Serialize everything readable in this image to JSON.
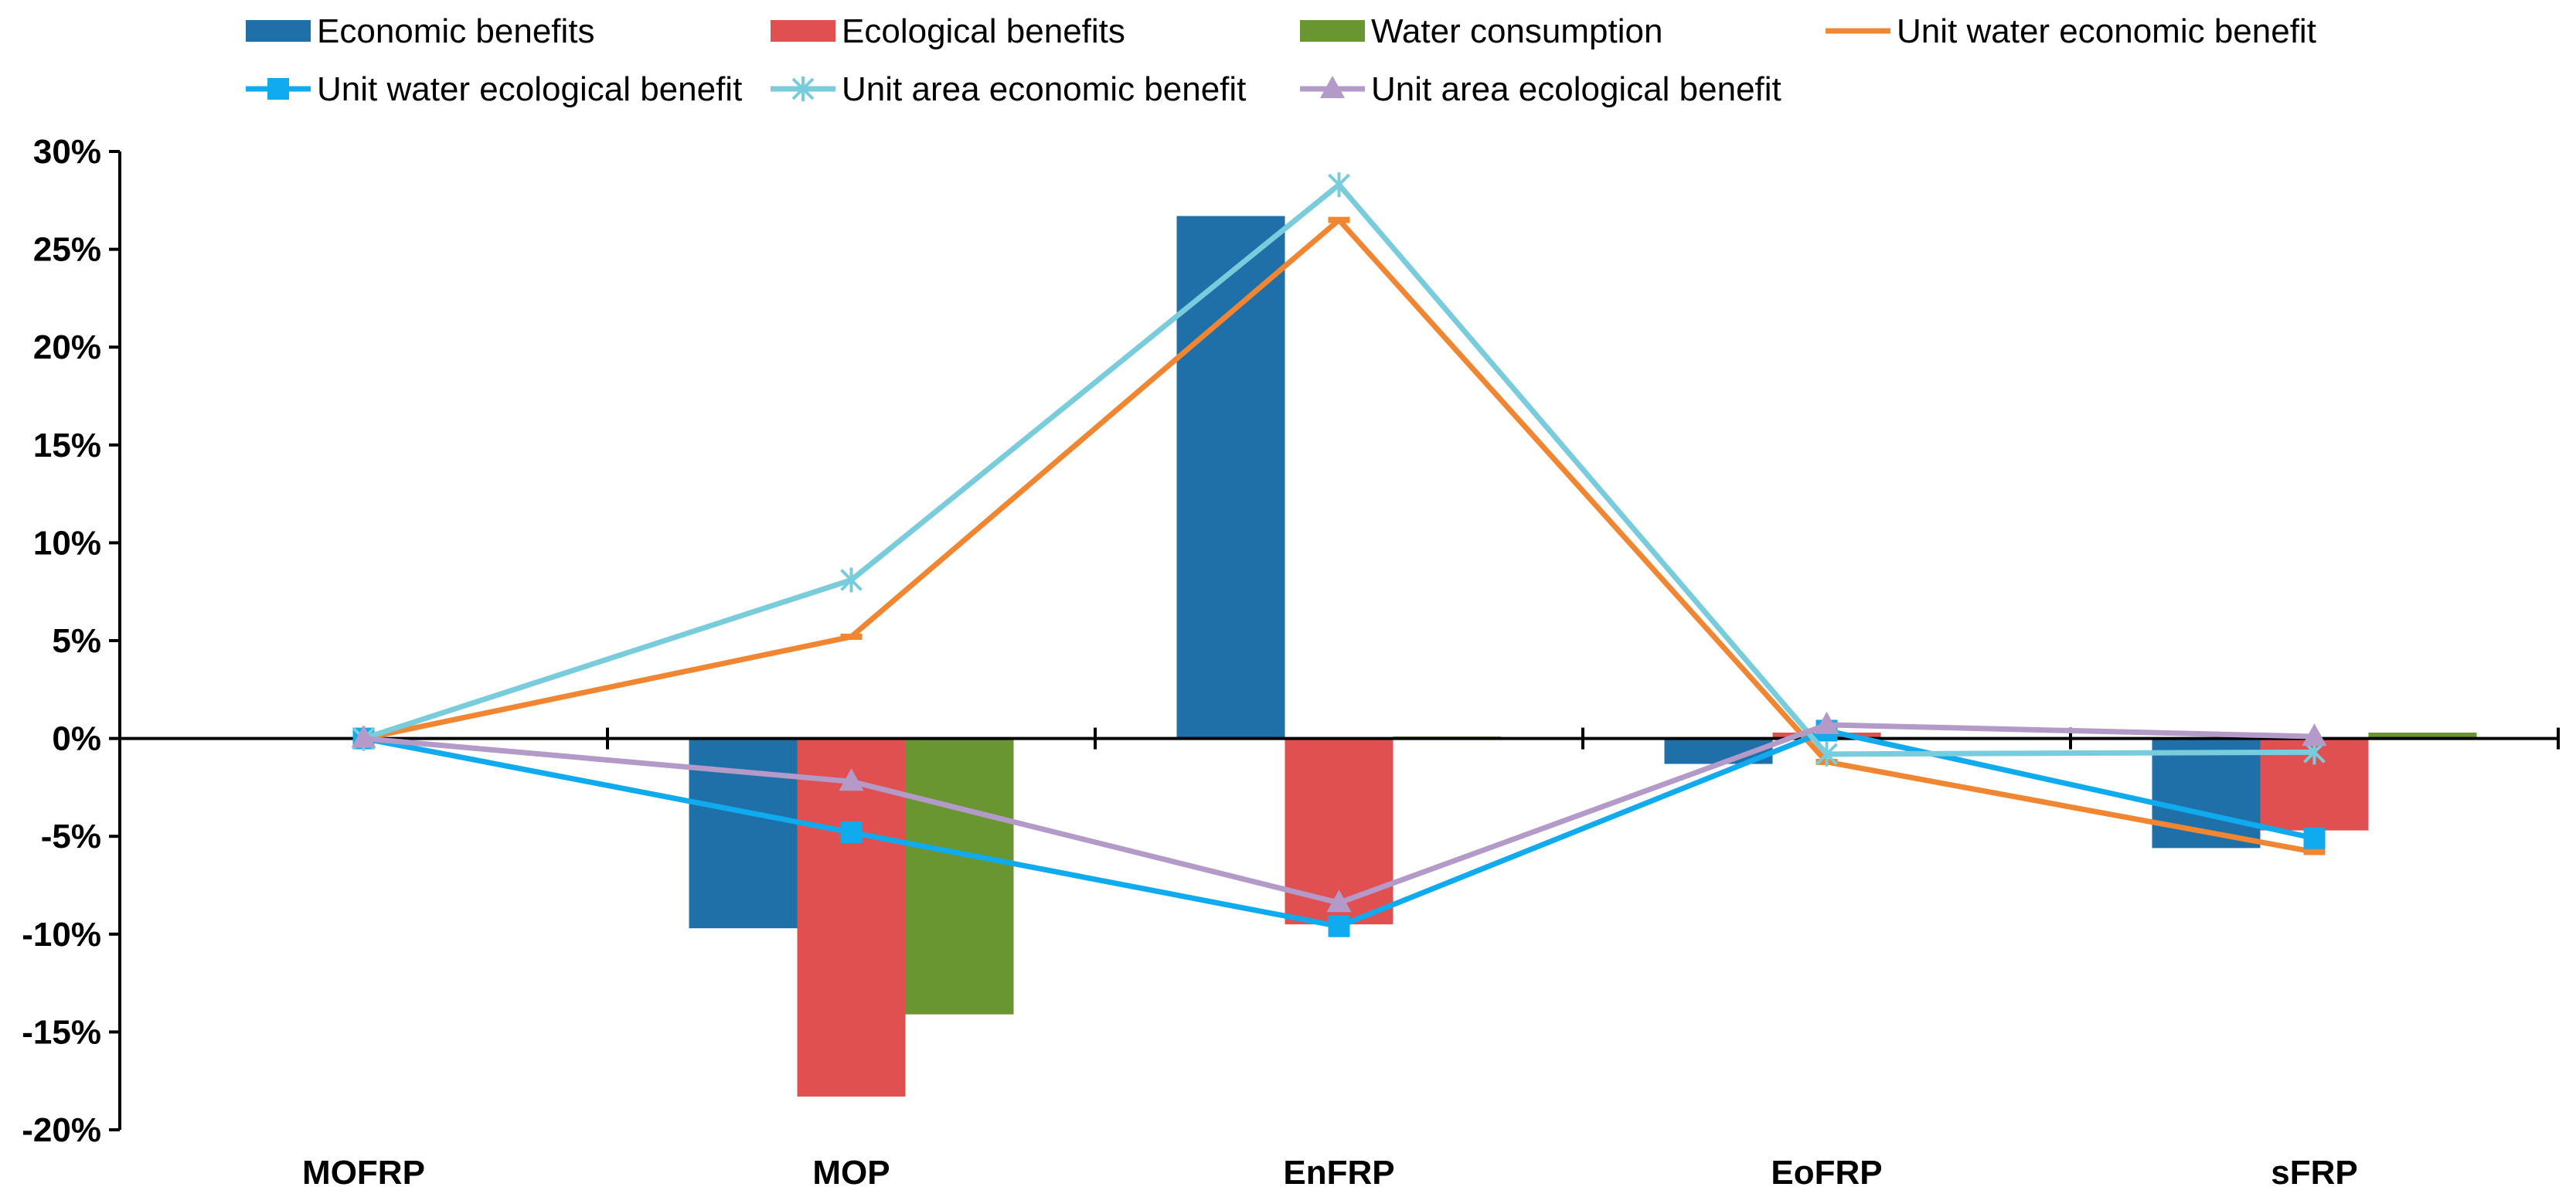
{
  "chart_data": {
    "type": "bar",
    "title": "",
    "xlabel": "",
    "ylabel": "",
    "ylim": [
      -0.2,
      0.3
    ],
    "y_ticks": [
      0.3,
      0.25,
      0.2,
      0.15,
      0.1,
      0.05,
      0.0,
      -0.05,
      -0.1,
      -0.15,
      -0.2
    ],
    "y_tick_labels": [
      "30%",
      "25%",
      "20%",
      "15%",
      "10%",
      "5%",
      "0%",
      "-5%",
      "-10%",
      "-15%",
      "-20%"
    ],
    "categories": [
      "MOFRP",
      "MOP",
      "EnFRP",
      "EoFRP",
      "sFRP"
    ],
    "legend_position": "top",
    "bar_series": [
      {
        "name": "Economic benefits",
        "color": "#1F6FA8",
        "values": [
          0.0,
          -0.097,
          0.267,
          -0.013,
          -0.056
        ]
      },
      {
        "name": "Ecological benefits",
        "color": "#E05050",
        "values": [
          0.0,
          -0.183,
          -0.095,
          0.003,
          -0.047
        ]
      },
      {
        "name": "Water consumption",
        "color": "#6A9632",
        "values": [
          0.0,
          -0.141,
          0.001,
          0.0,
          0.003
        ]
      }
    ],
    "line_series": [
      {
        "name": "Unit water economic benefit",
        "color": "#F08632",
        "marker": "dash",
        "values": [
          0.0,
          0.052,
          0.265,
          -0.012,
          -0.058
        ]
      },
      {
        "name": "Unit water ecological benefit",
        "color": "#10AAEE",
        "marker": "square",
        "values": [
          0.0,
          -0.048,
          -0.096,
          0.004,
          -0.051
        ]
      },
      {
        "name": "Unit area economic benefit",
        "color": "#78CCDC",
        "marker": "star",
        "values": [
          0.0,
          0.081,
          0.283,
          -0.008,
          -0.007
        ]
      },
      {
        "name": "Unit area ecological benefit",
        "color": "#B49AC8",
        "marker": "triangle",
        "values": [
          0.0,
          -0.022,
          -0.084,
          0.007,
          0.001
        ]
      }
    ]
  }
}
